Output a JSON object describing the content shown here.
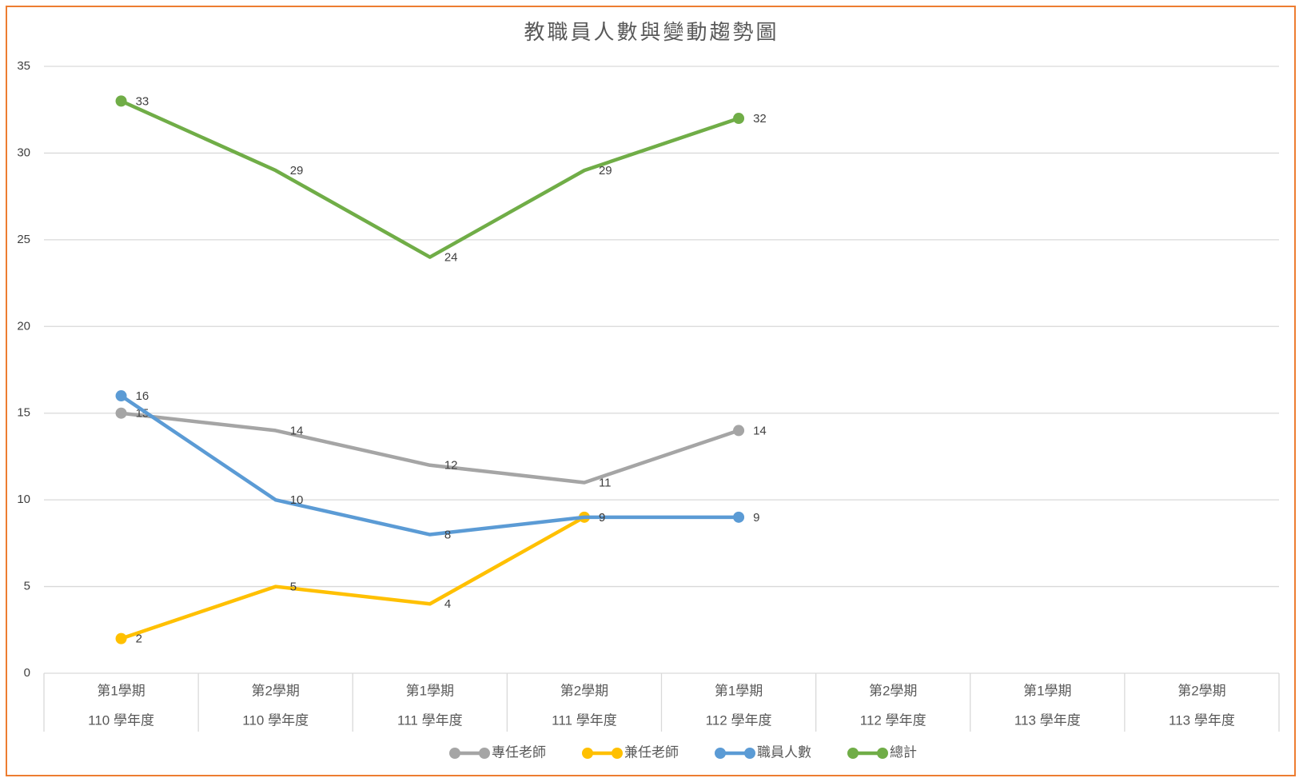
{
  "chart_data": {
    "type": "line",
    "title": "教職員人數與變動趨勢圖",
    "categories": [
      [
        "第1學期",
        "110 學年度"
      ],
      [
        "第2學期",
        "110 學年度"
      ],
      [
        "第1學期",
        "111 學年度"
      ],
      [
        "第2學期",
        "111 學年度"
      ],
      [
        "第1學期",
        "112 學年度"
      ],
      [
        "第2學期",
        "112 學年度"
      ],
      [
        "第1學期",
        "113 學年度"
      ],
      [
        "第2學期",
        "113 學年度"
      ]
    ],
    "series": [
      {
        "name": "專任老師",
        "color": "#a5a5a5",
        "values": [
          15,
          14,
          12,
          11,
          14,
          null,
          null,
          null
        ]
      },
      {
        "name": "兼任老師",
        "color": "#ffc000",
        "values": [
          2,
          5,
          4,
          9,
          null,
          null,
          null,
          null
        ]
      },
      {
        "name": "職員人數",
        "color": "#5b9bd5",
        "values": [
          16,
          10,
          8,
          9,
          9,
          null,
          null,
          null
        ]
      },
      {
        "name": "總計",
        "color": "#70ad47",
        "values": [
          33,
          29,
          24,
          29,
          32,
          null,
          null,
          null
        ]
      }
    ],
    "ylim": [
      0,
      35
    ],
    "yticks": [
      0,
      5,
      10,
      15,
      20,
      25,
      30,
      35
    ],
    "grid": true,
    "legend": "bottom"
  }
}
